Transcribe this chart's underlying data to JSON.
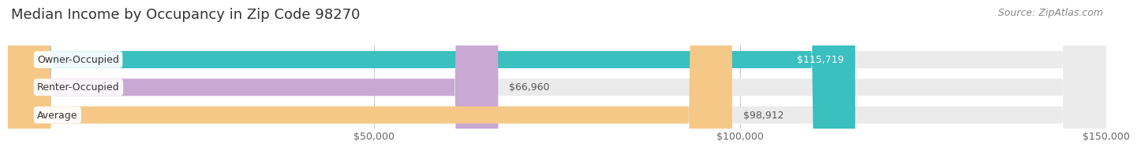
{
  "title": "Median Income by Occupancy in Zip Code 98270",
  "source": "Source: ZipAtlas.com",
  "categories": [
    "Owner-Occupied",
    "Renter-Occupied",
    "Average"
  ],
  "values": [
    115719,
    66960,
    98912
  ],
  "bar_colors": [
    "#3bbfbf",
    "#c9a8d4",
    "#f5c887"
  ],
  "bar_labels": [
    "$115,719",
    "$66,960",
    "$98,912"
  ],
  "label_inside": [
    true,
    false,
    false
  ],
  "xlim": [
    0,
    150000
  ],
  "xticks": [
    50000,
    100000,
    150000
  ],
  "xticklabels": [
    "$50,000",
    "$100,000",
    "$150,000"
  ],
  "background_color": "#ffffff",
  "bar_bg_color": "#ebebeb",
  "title_fontsize": 13,
  "source_fontsize": 9,
  "tick_fontsize": 9,
  "label_fontsize": 9,
  "category_fontsize": 9,
  "bar_height": 0.62,
  "grid_color": "#cccccc",
  "title_color": "#333333",
  "source_color": "#888888",
  "tick_color": "#666666",
  "value_label_inside_color": "#ffffff",
  "value_label_outside_color": "#555555"
}
